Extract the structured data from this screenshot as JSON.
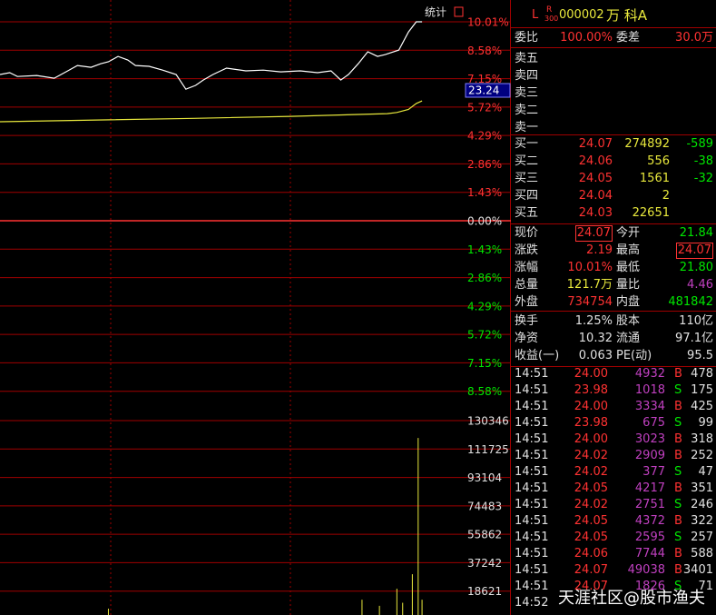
{
  "chart": {
    "button": "统计",
    "cursor_label": "23.24",
    "price_axis": {
      "ylim": [
        -10.01,
        10.01
      ],
      "yticks": [
        {
          "value": 10.01,
          "label": "10.01%"
        },
        {
          "value": 8.58,
          "label": "8.58%"
        },
        {
          "value": 7.15,
          "label": "7.15%"
        },
        {
          "value": 5.72,
          "label": "5.72%"
        },
        {
          "value": 4.29,
          "label": "4.29%"
        },
        {
          "value": 2.86,
          "label": "2.86%"
        },
        {
          "value": 1.43,
          "label": "1.43%"
        },
        {
          "value": 0,
          "label": "0.00%"
        },
        {
          "value": -1.43,
          "label": "1.43%"
        },
        {
          "value": -2.86,
          "label": "2.86%"
        },
        {
          "value": -4.29,
          "label": "4.29%"
        },
        {
          "value": -5.72,
          "label": "5.72%"
        },
        {
          "value": -7.15,
          "label": "7.15%"
        },
        {
          "value": -8.58,
          "label": "8.58%"
        }
      ]
    },
    "xlim": [
      0,
      240
    ],
    "price_line": {
      "color": "#ffffff",
      "x": [
        0,
        5,
        9,
        19,
        28,
        35,
        40,
        47,
        52,
        56,
        61,
        66,
        70,
        77,
        84,
        91,
        96,
        101,
        105,
        110,
        117,
        127,
        136,
        145,
        155,
        164,
        171,
        176,
        180,
        185,
        190,
        195,
        199,
        206,
        211,
        215,
        218
      ],
      "values": [
        7.36,
        7.45,
        7.26,
        7.31,
        7.17,
        7.54,
        7.81,
        7.72,
        7.9,
        8.0,
        8.27,
        8.09,
        7.81,
        7.77,
        7.58,
        7.36,
        6.62,
        6.81,
        7.08,
        7.36,
        7.68,
        7.54,
        7.58,
        7.49,
        7.54,
        7.45,
        7.54,
        7.08,
        7.36,
        7.9,
        8.5,
        8.27,
        8.36,
        8.59,
        9.5,
        10.01,
        10.01
      ]
    },
    "avg_line": {
      "color": "#e8e83c",
      "x": [
        0,
        50,
        100,
        150,
        200,
        205,
        211,
        215,
        218
      ],
      "values": [
        4.98,
        5.07,
        5.15,
        5.25,
        5.39,
        5.45,
        5.6,
        5.9,
        6.03
      ]
    },
    "volume": {
      "color": "#e8e83c",
      "ylim": [
        0,
        130346
      ],
      "yticks": [
        130346,
        111725,
        93104,
        74483,
        55862,
        37242,
        18621
      ],
      "x": [
        56,
        187,
        196,
        205,
        208,
        213,
        216,
        218
      ],
      "values": [
        7100,
        13000,
        9000,
        20200,
        11000,
        29700,
        119000,
        13000
      ]
    }
  },
  "quote": {
    "badge_l": "L",
    "badge_r": "R",
    "badge_n": "300",
    "code": "000002",
    "name": "万 科A",
    "ratio": [
      "委比",
      "100.00%",
      "委差",
      "30.0万"
    ],
    "sells": [
      "卖五",
      "卖四",
      "卖三",
      "卖二",
      "卖一"
    ],
    "buys": [
      [
        "买一",
        "24.07",
        "274892",
        "-589"
      ],
      [
        "买二",
        "24.06",
        "556",
        "-38"
      ],
      [
        "买三",
        "24.05",
        "1561",
        "-32"
      ],
      [
        "买四",
        "24.04",
        "2",
        ""
      ],
      [
        "买五",
        "24.03",
        "22651",
        ""
      ]
    ],
    "stats": [
      [
        "现价",
        "24.07",
        "今开",
        "21.84"
      ],
      [
        "涨跌",
        "2.19",
        "最高",
        "24.07"
      ],
      [
        "涨幅",
        "10.01%",
        "最低",
        "21.80"
      ],
      [
        "总量",
        "121.7万",
        "量比",
        "4.46"
      ],
      [
        "外盘",
        "734754",
        "内盘",
        "481842"
      ]
    ],
    "stat_colors": [
      [
        "#ff3232",
        "#00e600"
      ],
      [
        "#ff3232",
        "#ff3232"
      ],
      [
        "#ff3232",
        "#00e600"
      ],
      [
        "#e8e83c",
        "#c040c0"
      ],
      [
        "#ff3232",
        "#00e600"
      ]
    ],
    "info": [
      [
        "换手",
        "1.25%",
        "股本",
        "110亿"
      ],
      [
        "净资",
        "10.32",
        "流通",
        "97.1亿"
      ],
      [
        "收益(一)",
        "0.063",
        "PE(动)",
        "95.5"
      ]
    ],
    "trades": [
      [
        "14:51",
        "24.00",
        "4932",
        "B",
        "478"
      ],
      [
        "14:51",
        "23.98",
        "1018",
        "S",
        "175"
      ],
      [
        "14:51",
        "24.00",
        "3334",
        "B",
        "425"
      ],
      [
        "14:51",
        "23.98",
        "675",
        "S",
        "99"
      ],
      [
        "14:51",
        "24.00",
        "3023",
        "B",
        "318"
      ],
      [
        "14:51",
        "24.02",
        "2909",
        "B",
        "252"
      ],
      [
        "14:51",
        "24.02",
        "377",
        "S",
        "47"
      ],
      [
        "14:51",
        "24.05",
        "4217",
        "B",
        "351"
      ],
      [
        "14:51",
        "24.02",
        "2751",
        "S",
        "246"
      ],
      [
        "14:51",
        "24.05",
        "4372",
        "B",
        "322"
      ],
      [
        "14:51",
        "24.05",
        "2595",
        "S",
        "257"
      ],
      [
        "14:51",
        "24.06",
        "7744",
        "B",
        "588"
      ],
      [
        "14:51",
        "24.07",
        "49038",
        "B",
        "3401"
      ],
      [
        "14:51",
        "24.07",
        "1826",
        "S",
        "71"
      ],
      [
        "14:52"
      ]
    ],
    "trade_colors": [
      "#e0e0e0",
      "#ff3232",
      "#c040c0",
      "#00e600",
      "#e0e0e0"
    ],
    "watermark": "天涯社区@股市渔夫"
  }
}
